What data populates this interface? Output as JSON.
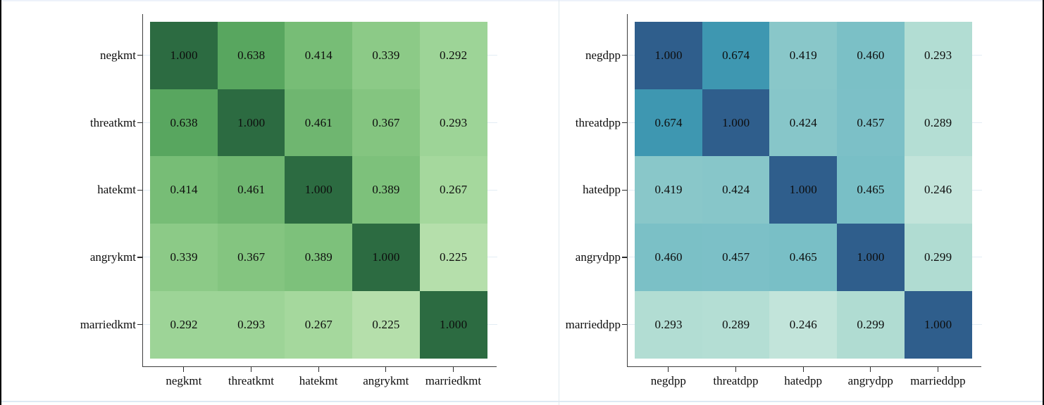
{
  "window": {
    "edge_colors": {
      "top_line": "#edf2fa",
      "bottom_line": "#dde9f4",
      "left_bar": "#000000",
      "right_bar": "#000000",
      "panel_divider": "#dfe9ee"
    }
  },
  "chart_data": [
    {
      "type": "heatmap",
      "id": "kmt",
      "title": "",
      "categories": [
        "negkmt",
        "threatkmt",
        "hatekmt",
        "angrykmt",
        "marriedkmt"
      ],
      "x_categories": [
        "negkmt",
        "threatkmt",
        "hatekmt",
        "angrykmt",
        "marriedkmt"
      ],
      "matrix": [
        [
          1.0,
          0.638,
          0.414,
          0.339,
          0.292
        ],
        [
          0.638,
          1.0,
          0.461,
          0.367,
          0.293
        ],
        [
          0.414,
          0.461,
          1.0,
          0.389,
          0.267
        ],
        [
          0.339,
          0.367,
          0.389,
          1.0,
          0.225
        ],
        [
          0.292,
          0.293,
          0.267,
          0.225,
          1.0
        ]
      ],
      "value_decimals": 3,
      "value_range": [
        0.225,
        1.0
      ],
      "palette": "greens",
      "color_anchors": [
        [
          0.225,
          "#b5dfab"
        ],
        [
          0.267,
          "#a5d89d"
        ],
        [
          0.292,
          "#9dd497"
        ],
        [
          0.339,
          "#8cca87"
        ],
        [
          0.389,
          "#7dc17b"
        ],
        [
          0.414,
          "#77bd76"
        ],
        [
          0.461,
          "#6fb670"
        ],
        [
          0.638,
          "#58a65f"
        ],
        [
          1.0,
          "#2c6b41"
        ]
      ],
      "axis_color": "#3d3d3d",
      "tick_color": "#2b2b2b",
      "gridline_color": "#e3edf4",
      "text_color": "#0d0d0d",
      "grid": "faint horizontal gridlines at row centers",
      "legend": "none"
    },
    {
      "type": "heatmap",
      "id": "dpp",
      "title": "",
      "categories": [
        "negdpp",
        "threatdpp",
        "hatedpp",
        "angrydpp",
        "marrieddpp"
      ],
      "x_categories": [
        "negdpp",
        "threatdpp",
        "hatedpp",
        "angrydpp",
        "marrieddpp"
      ],
      "matrix": [
        [
          1.0,
          0.674,
          0.419,
          0.46,
          0.293
        ],
        [
          0.674,
          1.0,
          0.424,
          0.457,
          0.289
        ],
        [
          0.419,
          0.424,
          1.0,
          0.465,
          0.246
        ],
        [
          0.46,
          0.457,
          0.465,
          1.0,
          0.299
        ],
        [
          0.293,
          0.289,
          0.246,
          0.299,
          1.0
        ]
      ],
      "value_decimals": 3,
      "value_range": [
        0.246,
        1.0
      ],
      "palette": "blues",
      "color_anchors": [
        [
          0.246,
          "#c2e4da"
        ],
        [
          0.289,
          "#b4ded4"
        ],
        [
          0.299,
          "#b0dcd2"
        ],
        [
          0.419,
          "#89c7c9"
        ],
        [
          0.424,
          "#87c6c9"
        ],
        [
          0.465,
          "#79bfc6"
        ],
        [
          0.674,
          "#3e97b1"
        ],
        [
          1.0,
          "#2f5e8c"
        ]
      ],
      "axis_color": "#3d3d3d",
      "tick_color": "#2b2b2b",
      "gridline_color": "#e3edf4",
      "text_color": "#0d0d0d",
      "grid": "faint horizontal gridlines at row centers",
      "legend": "none"
    }
  ]
}
